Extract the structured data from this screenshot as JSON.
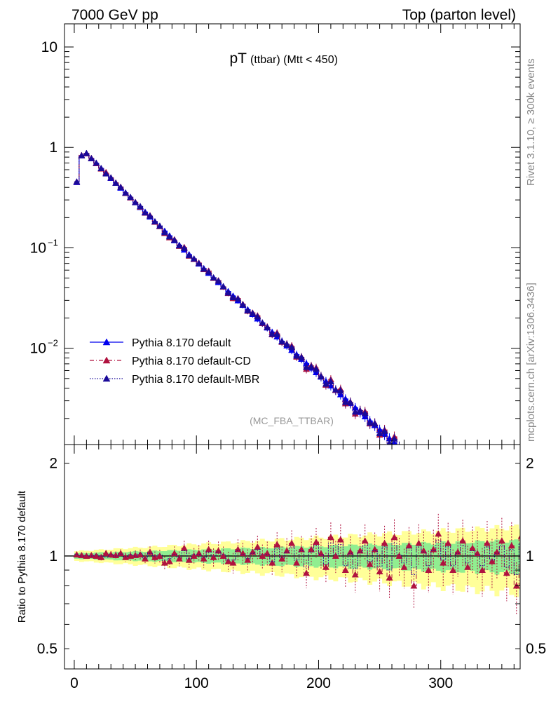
{
  "header": {
    "left": "7000 GeV pp",
    "right": "Top (parton level)"
  },
  "side_labels": {
    "rivet": "Rivet 3.1.10, ≥ 300k events",
    "mcplots": "mcplots.cern.ch [arXiv:1306.3436]"
  },
  "main_title": {
    "main": "pT",
    "sub": "(ttbar) (Mtt < 450)"
  },
  "analysis_tag": "(MC_FBA_TTBAR)",
  "colors": {
    "default": "#0000ee",
    "cd": "#b0123f",
    "mbr": "#1a0a99",
    "band_inner": "#90ee90",
    "band_outer": "#ffff99"
  },
  "chart_data": [
    {
      "type": "line",
      "panel": "main",
      "yscale": "log",
      "xlim": [
        -8,
        365
      ],
      "ylim": [
        0.0011,
        17
      ],
      "yticks": [
        {
          "value": 10,
          "label": "10"
        },
        {
          "value": 1,
          "label": "1"
        },
        {
          "value": 0.1,
          "base": "10",
          "exp": "−1"
        },
        {
          "value": 0.01,
          "base": "10",
          "exp": "−2"
        }
      ],
      "legend_position": "bottom-left",
      "legend": [
        "Pythia 8.170 default",
        "Pythia 8.170 default-CD",
        "Pythia 8.170 default-MBR"
      ],
      "series": [
        {
          "name": "Pythia 8.170 default",
          "style": "solid",
          "ratio_dev": [
            0,
            0,
            0,
            0,
            0,
            0,
            0,
            0,
            0,
            0,
            0,
            0,
            0,
            0,
            0,
            0,
            0,
            0,
            0,
            0,
            0,
            0,
            0,
            0,
            0,
            0,
            0,
            0,
            0,
            0,
            0,
            0,
            0,
            0,
            0,
            0,
            0,
            0,
            0,
            0,
            0,
            0,
            0,
            0,
            0,
            0,
            0,
            0,
            0,
            0,
            0,
            0,
            0,
            0,
            0,
            0,
            0,
            0,
            0,
            0,
            0,
            0,
            0,
            0,
            0,
            0,
            0,
            0,
            0,
            0,
            0,
            0,
            0,
            0,
            0,
            0,
            0,
            0,
            0,
            0,
            0,
            0,
            0,
            0,
            0,
            0,
            0,
            0,
            0,
            0,
            0,
            0
          ]
        },
        {
          "name": "Pythia 8.170 default-CD",
          "style": "dashdot",
          "ratio_dev": [
            0.01,
            0.005,
            0,
            0.005,
            0,
            -0.01,
            0.02,
            0.01,
            0.005,
            0.02,
            -0.01,
            0,
            0.005,
            0.01,
            -0.02,
            0.03,
            -0.01,
            0,
            -0.05,
            -0.04,
            0.02,
            -0.02,
            0.06,
            -0.03,
            0,
            0.02,
            -0.02,
            0.05,
            -0.01,
            0.04,
            0,
            -0.04,
            -0.05,
            0.05,
            0.02,
            -0.03,
            0.03,
            0.07,
            0,
            0.02,
            -0.05,
            0.09,
            -0.02,
            0.04,
            0.1,
            -0.05,
            0.05,
            -0.12,
            0.05,
            0.11,
            0.02,
            -0.08,
            0.15,
            0,
            0.13,
            -0.1,
            0.03,
            -0.13,
            0.04,
            0.12,
            -0.06,
            0.05,
            -0.11,
            0.1,
            -0.15,
            0.15,
            0,
            -0.08,
            0.08,
            -0.2,
            0.1,
            0.04,
            -0.1,
            0.05,
            0.18,
            -0.05,
            0.1,
            -0.1,
            0.03,
            0.12,
            -0.08,
            0.06,
            0.02,
            -0.1,
            0.1,
            -0.04,
            0.03,
            0.12,
            -0.12,
            0.08,
            -0.2,
            0.16
          ]
        },
        {
          "name": "Pythia 8.170 default-MBR",
          "style": "dotted",
          "ratio_dev": [
            0.01,
            0,
            0.005,
            0,
            0.01,
            0,
            -0.01,
            0.01,
            0,
            0.015,
            -0.005,
            0.01,
            0,
            0.02,
            -0.015,
            0.02,
            0,
            0.01,
            -0.03,
            -0.02,
            0.01,
            -0.01,
            0.04,
            -0.02,
            0.01,
            0.01,
            -0.01,
            0.03,
            0,
            0.03,
            0.01,
            -0.03,
            -0.03,
            0.04,
            0.01,
            -0.02,
            0.02,
            0.05,
            0.01,
            0.01,
            -0.04,
            0.06,
            -0.01,
            0.03,
            0.07,
            -0.03,
            0.04,
            -0.08,
            0.03,
            0.08,
            0.01,
            -0.06,
            0.1,
            0.01,
            0.09,
            -0.07,
            0.02,
            -0.09,
            0.03,
            0.08,
            -0.04,
            0.04,
            -0.08,
            0.07,
            -0.1,
            0.1,
            0.01,
            -0.05,
            0.06,
            -0.13,
            0.07,
            0.03,
            -0.07,
            0.04,
            0.12,
            -0.03,
            0.07,
            -0.07,
            0.02,
            0.08,
            -0.05,
            0.04,
            0.01,
            -0.07,
            0.07,
            -0.03,
            0.02,
            0.08,
            -0.08,
            0.05,
            -0.13,
            0.1
          ]
        }
      ]
    },
    {
      "type": "line",
      "panel": "ratio",
      "ylabel": "Ratio to Pythia 8.170 default",
      "yscale": "log",
      "ylim": [
        0.43,
        2.3
      ],
      "yticks": [
        {
          "value": 2,
          "label": "2"
        },
        {
          "value": 1,
          "label": "1"
        },
        {
          "value": 0.5,
          "label": "0.5"
        }
      ],
      "xticks": [
        0,
        100,
        200,
        300
      ],
      "band_inner_halfwidth": [
        0.02,
        0.12
      ],
      "band_outer_halfwidth": [
        0.035,
        0.24
      ]
    }
  ]
}
